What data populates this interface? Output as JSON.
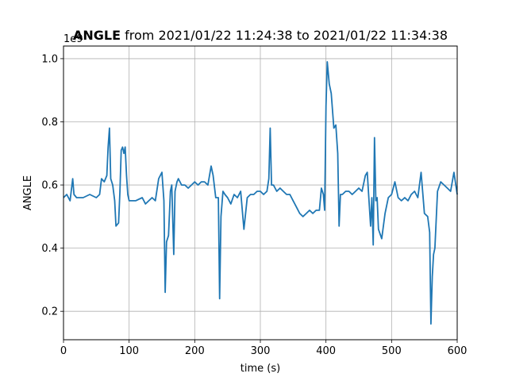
{
  "chart_data": {
    "type": "line",
    "title_bold": "ANGLE",
    "title_rest": " from 2021/01/22 11:24:38 to 2021/01/22 11:34:38",
    "xlabel": "time (s)",
    "ylabel": "ANGLE",
    "offset_text": "1e9",
    "xlim": [
      0,
      600
    ],
    "ylim": [
      0.11,
      1.04
    ],
    "xticks": [
      0,
      100,
      200,
      300,
      400,
      500,
      600
    ],
    "xtick_labels": [
      "0",
      "100",
      "200",
      "300",
      "400",
      "500",
      "600"
    ],
    "yticks": [
      0.2,
      0.4,
      0.6,
      0.8,
      1.0
    ],
    "ytick_labels": [
      "0.2",
      "0.4",
      "0.6",
      "0.8",
      "1.0"
    ],
    "grid": true,
    "line_color": "#1f77b4",
    "series": [
      {
        "x": [
          0,
          5,
          10,
          14,
          16,
          20,
          30,
          40,
          50,
          55,
          58,
          62,
          66,
          68,
          70,
          72,
          75,
          78,
          80,
          84,
          86,
          88,
          90,
          92,
          94,
          96,
          98,
          100,
          110,
          120,
          125,
          130,
          135,
          140,
          145,
          150,
          153,
          155,
          157,
          160,
          163,
          165,
          168,
          170,
          173,
          175,
          180,
          185,
          190,
          195,
          200,
          205,
          210,
          215,
          220,
          225,
          228,
          232,
          236,
          238,
          240,
          243,
          246,
          250,
          255,
          260,
          265,
          270,
          275,
          280,
          285,
          290,
          295,
          300,
          305,
          310,
          313,
          315,
          317,
          320,
          325,
          330,
          335,
          340,
          345,
          350,
          355,
          360,
          365,
          370,
          375,
          380,
          385,
          390,
          393,
          396,
          398,
          400,
          402,
          405,
          408,
          412,
          415,
          418,
          420,
          422,
          425,
          430,
          435,
          440,
          445,
          450,
          455,
          460,
          463,
          465,
          468,
          470,
          472,
          474,
          476,
          478,
          480,
          485,
          490,
          495,
          500,
          505,
          510,
          515,
          520,
          525,
          530,
          535,
          540,
          545,
          550,
          555,
          558,
          560,
          562,
          564,
          566,
          570,
          575,
          580,
          585,
          590,
          595,
          600
        ],
        "values": [
          0.56,
          0.57,
          0.55,
          0.62,
          0.57,
          0.56,
          0.56,
          0.57,
          0.56,
          0.57,
          0.62,
          0.61,
          0.63,
          0.72,
          0.78,
          0.62,
          0.6,
          0.55,
          0.47,
          0.48,
          0.58,
          0.71,
          0.72,
          0.7,
          0.72,
          0.63,
          0.57,
          0.55,
          0.55,
          0.56,
          0.54,
          0.55,
          0.56,
          0.55,
          0.62,
          0.64,
          0.55,
          0.26,
          0.42,
          0.44,
          0.58,
          0.6,
          0.38,
          0.58,
          0.61,
          0.62,
          0.6,
          0.6,
          0.59,
          0.6,
          0.61,
          0.6,
          0.61,
          0.61,
          0.6,
          0.66,
          0.63,
          0.56,
          0.56,
          0.24,
          0.5,
          0.58,
          0.57,
          0.56,
          0.54,
          0.57,
          0.56,
          0.58,
          0.46,
          0.56,
          0.57,
          0.57,
          0.58,
          0.58,
          0.57,
          0.58,
          0.62,
          0.78,
          0.6,
          0.6,
          0.58,
          0.59,
          0.58,
          0.57,
          0.57,
          0.55,
          0.53,
          0.51,
          0.5,
          0.51,
          0.52,
          0.51,
          0.52,
          0.52,
          0.59,
          0.57,
          0.52,
          0.85,
          0.99,
          0.92,
          0.89,
          0.78,
          0.79,
          0.7,
          0.47,
          0.57,
          0.57,
          0.58,
          0.58,
          0.57,
          0.58,
          0.59,
          0.58,
          0.63,
          0.64,
          0.57,
          0.47,
          0.56,
          0.41,
          0.75,
          0.55,
          0.56,
          0.46,
          0.43,
          0.51,
          0.56,
          0.57,
          0.61,
          0.56,
          0.55,
          0.56,
          0.55,
          0.57,
          0.58,
          0.56,
          0.64,
          0.51,
          0.5,
          0.45,
          0.16,
          0.31,
          0.38,
          0.4,
          0.58,
          0.61,
          0.6,
          0.59,
          0.58,
          0.64,
          0.57
        ]
      }
    ]
  }
}
